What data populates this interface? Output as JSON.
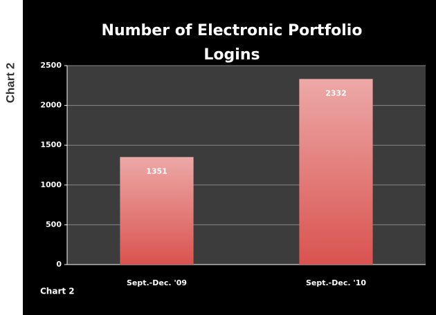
{
  "page": {
    "side_label": "Chart 2"
  },
  "chart_data": {
    "type": "bar",
    "title": [
      "Number of Electronic Portfolio",
      "Logins"
    ],
    "categories": [
      "Sept.-Dec. '09",
      "Sept.-Dec. '10"
    ],
    "values": [
      1351,
      2332
    ],
    "color": "#d9534f",
    "ylim": [
      0,
      2500
    ],
    "yticks": [
      0,
      500,
      1000,
      1500,
      2000,
      2500
    ],
    "grid": true,
    "annotations": [
      "Chart 2"
    ]
  }
}
